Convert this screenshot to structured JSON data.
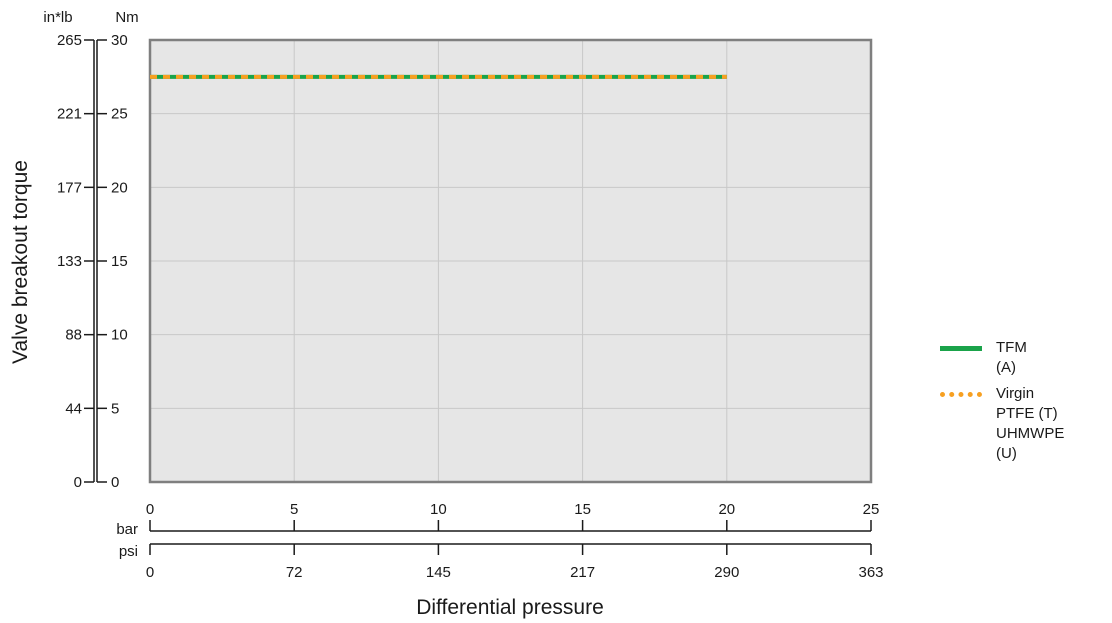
{
  "chart_data": {
    "type": "line",
    "title": "",
    "ylabel": "Valve breakout torque",
    "xlabel": "Differential pressure",
    "y_axes": [
      {
        "unit": "in*lb",
        "ticks": [
          "265",
          "221",
          "177",
          "133",
          "88",
          "44",
          "0"
        ]
      },
      {
        "unit": "Nm",
        "ticks": [
          "30",
          "25",
          "20",
          "15",
          "10",
          "5",
          "0"
        ]
      }
    ],
    "x_axes": [
      {
        "unit": "bar",
        "ticks": [
          "0",
          "5",
          "10",
          "15",
          "20",
          "25"
        ]
      },
      {
        "unit": "psi",
        "ticks": [
          "0",
          "72",
          "145",
          "217",
          "290",
          "363"
        ]
      }
    ],
    "xlim": [
      0,
      25
    ],
    "ylim": [
      0,
      30
    ],
    "grid": true,
    "legend_position": "right",
    "series": [
      {
        "name": "TFM (A)",
        "x": [
          0,
          20
        ],
        "y": [
          27.5,
          27.5
        ],
        "color": "#1aa34a",
        "style": "solid"
      },
      {
        "name_lines": [
          "Virgin PTFE (T)",
          "UHMWPE (U)"
        ],
        "x": [
          0,
          20
        ],
        "y": [
          27.5,
          27.5
        ],
        "color": "#f7a021",
        "style": "dashed"
      }
    ],
    "colors": {
      "plot_background": "#e6e6e6",
      "grid": "#c8c8c8",
      "frame": "#7f7f7f"
    }
  }
}
